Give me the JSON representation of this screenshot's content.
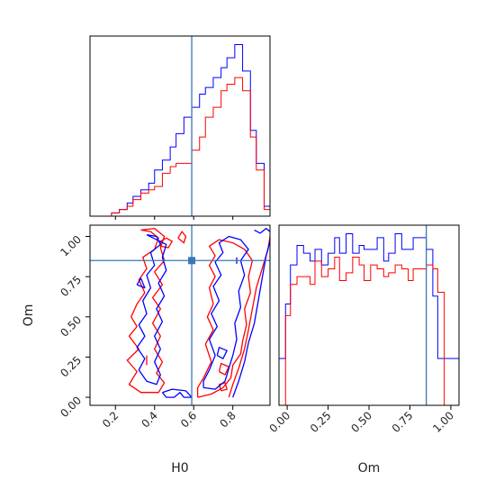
{
  "chart_data": [
    {
      "type": "histogram",
      "parameter": "H0",
      "xlim": [
        0.07,
        0.99
      ],
      "truth": 0.59,
      "bin_edges": [
        0.07,
        0.11,
        0.14,
        0.18,
        0.22,
        0.26,
        0.29,
        0.33,
        0.37,
        0.4,
        0.44,
        0.48,
        0.51,
        0.55,
        0.59,
        0.63,
        0.66,
        0.7,
        0.74,
        0.77,
        0.81,
        0.85,
        0.89,
        0.92,
        0.96,
        0.99
      ],
      "series": [
        {
          "color": "#0000ff",
          "values": [
            0,
            0,
            0,
            1,
            2,
            4,
            6,
            8,
            10,
            14,
            17,
            21,
            25,
            30,
            33,
            37,
            39,
            42,
            45,
            48,
            52,
            44,
            26,
            16,
            3
          ]
        },
        {
          "color": "#ff0000",
          "values": [
            0,
            0,
            0,
            1,
            2,
            3,
            5,
            7,
            8,
            9,
            13,
            15,
            16,
            16,
            20,
            24,
            30,
            33,
            38,
            40,
            42,
            38,
            24,
            14,
            2
          ]
        }
      ]
    },
    {
      "type": "contour",
      "xparam": "H0",
      "yparam": "Om",
      "xlabel": "H0",
      "ylabel": "Om",
      "xlim": [
        0.07,
        0.99
      ],
      "ylim": [
        -0.05,
        1.07
      ],
      "xticks": [
        "0.2",
        "0.4",
        "0.6",
        "0.8"
      ],
      "xtick_values": [
        0.2,
        0.4,
        0.6,
        0.8
      ],
      "yticks": [
        "0.00",
        "0.25",
        "0.50",
        "0.75",
        "1.00"
      ],
      "ytick_values": [
        0.0,
        0.25,
        0.5,
        0.75,
        1.0
      ],
      "truth": {
        "x": 0.59,
        "y": 0.85
      },
      "series": [
        {
          "color": "#ff0000",
          "contours": [
            [
              [
                0.33,
                1.04
              ],
              [
                0.38,
                1.03
              ],
              [
                0.42,
                0.99
              ],
              [
                0.4,
                0.92
              ],
              [
                0.34,
                0.87
              ],
              [
                0.36,
                0.8
              ],
              [
                0.32,
                0.73
              ],
              [
                0.35,
                0.65
              ],
              [
                0.31,
                0.58
              ],
              [
                0.28,
                0.5
              ],
              [
                0.31,
                0.44
              ],
              [
                0.27,
                0.38
              ],
              [
                0.32,
                0.3
              ],
              [
                0.26,
                0.23
              ],
              [
                0.31,
                0.16
              ],
              [
                0.27,
                0.08
              ],
              [
                0.33,
                0.03
              ],
              [
                0.42,
                0.03
              ],
              [
                0.45,
                0.09
              ],
              [
                0.41,
                0.15
              ],
              [
                0.44,
                0.22
              ],
              [
                0.4,
                0.3
              ],
              [
                0.43,
                0.38
              ],
              [
                0.39,
                0.46
              ],
              [
                0.43,
                0.55
              ],
              [
                0.39,
                0.62
              ],
              [
                0.44,
                0.7
              ],
              [
                0.4,
                0.78
              ],
              [
                0.45,
                0.85
              ],
              [
                0.43,
                0.93
              ],
              [
                0.45,
                1.0
              ],
              [
                0.4,
                1.05
              ],
              [
                0.33,
                1.04
              ]
            ],
            [
              [
                0.62,
                0.0
              ],
              [
                0.69,
                0.02
              ],
              [
                0.75,
                0.06
              ],
              [
                0.79,
                0.12
              ],
              [
                0.8,
                0.2
              ],
              [
                0.84,
                0.27
              ],
              [
                0.85,
                0.35
              ],
              [
                0.87,
                0.45
              ],
              [
                0.86,
                0.55
              ],
              [
                0.89,
                0.65
              ],
              [
                0.88,
                0.75
              ],
              [
                0.9,
                0.85
              ],
              [
                0.86,
                0.92
              ],
              [
                0.8,
                0.96
              ],
              [
                0.73,
                0.98
              ],
              [
                0.68,
                0.94
              ],
              [
                0.71,
                0.88
              ],
              [
                0.68,
                0.82
              ],
              [
                0.71,
                0.75
              ],
              [
                0.68,
                0.68
              ],
              [
                0.7,
                0.58
              ],
              [
                0.67,
                0.5
              ],
              [
                0.7,
                0.42
              ],
              [
                0.66,
                0.33
              ],
              [
                0.69,
                0.22
              ],
              [
                0.65,
                0.12
              ],
              [
                0.62,
                0.06
              ],
              [
                0.62,
                0.0
              ]
            ],
            [
              [
                0.78,
                0.0
              ],
              [
                0.8,
                0.08
              ],
              [
                0.83,
                0.18
              ],
              [
                0.86,
                0.3
              ],
              [
                0.88,
                0.42
              ],
              [
                0.9,
                0.55
              ],
              [
                0.92,
                0.68
              ],
              [
                0.95,
                0.8
              ],
              [
                0.98,
                0.92
              ],
              [
                0.99,
                1.0
              ]
            ],
            [
              [
                0.43,
                0.97
              ],
              [
                0.46,
                0.99
              ],
              [
                0.49,
                0.97
              ],
              [
                0.47,
                0.93
              ],
              [
                0.43,
                0.94
              ],
              [
                0.43,
                0.97
              ]
            ],
            [
              [
                0.52,
                0.99
              ],
              [
                0.54,
                1.03
              ],
              [
                0.56,
                1.0
              ],
              [
                0.55,
                0.96
              ],
              [
                0.52,
                0.99
              ]
            ],
            [
              [
                0.74,
                0.04
              ],
              [
                0.77,
                0.05
              ],
              [
                0.76,
                0.09
              ],
              [
                0.73,
                0.08
              ],
              [
                0.74,
                0.04
              ]
            ],
            [
              [
                0.36,
                0.2
              ],
              [
                0.36,
                0.26
              ]
            ],
            [
              [
                0.73,
                0.16
              ],
              [
                0.76,
                0.14
              ],
              [
                0.78,
                0.19
              ],
              [
                0.74,
                0.21
              ],
              [
                0.73,
                0.16
              ]
            ]
          ]
        },
        {
          "color": "#0000ff",
          "contours": [
            [
              [
                0.36,
                1.01
              ],
              [
                0.41,
                1.0
              ],
              [
                0.43,
                0.95
              ],
              [
                0.38,
                0.9
              ],
              [
                0.4,
                0.82
              ],
              [
                0.36,
                0.76
              ],
              [
                0.38,
                0.68
              ],
              [
                0.34,
                0.6
              ],
              [
                0.36,
                0.52
              ],
              [
                0.32,
                0.45
              ],
              [
                0.35,
                0.38
              ],
              [
                0.31,
                0.31
              ],
              [
                0.35,
                0.24
              ],
              [
                0.32,
                0.17
              ],
              [
                0.36,
                0.1
              ],
              [
                0.41,
                0.08
              ],
              [
                0.43,
                0.14
              ],
              [
                0.4,
                0.22
              ],
              [
                0.43,
                0.3
              ],
              [
                0.4,
                0.38
              ],
              [
                0.44,
                0.47
              ],
              [
                0.41,
                0.55
              ],
              [
                0.45,
                0.63
              ],
              [
                0.42,
                0.71
              ],
              [
                0.46,
                0.79
              ],
              [
                0.44,
                0.87
              ],
              [
                0.46,
                0.95
              ],
              [
                0.36,
                1.01
              ]
            ],
            [
              [
                0.65,
                0.06
              ],
              [
                0.71,
                0.05
              ],
              [
                0.76,
                0.1
              ],
              [
                0.78,
                0.18
              ],
              [
                0.8,
                0.26
              ],
              [
                0.82,
                0.36
              ],
              [
                0.81,
                0.46
              ],
              [
                0.84,
                0.56
              ],
              [
                0.83,
                0.66
              ],
              [
                0.86,
                0.76
              ],
              [
                0.84,
                0.85
              ],
              [
                0.88,
                0.92
              ],
              [
                0.84,
                0.98
              ],
              [
                0.78,
                1.0
              ],
              [
                0.73,
                0.96
              ],
              [
                0.75,
                0.9
              ],
              [
                0.71,
                0.84
              ],
              [
                0.74,
                0.76
              ],
              [
                0.7,
                0.69
              ],
              [
                0.73,
                0.6
              ],
              [
                0.69,
                0.52
              ],
              [
                0.72,
                0.44
              ],
              [
                0.68,
                0.36
              ],
              [
                0.71,
                0.26
              ],
              [
                0.68,
                0.17
              ],
              [
                0.65,
                0.1
              ],
              [
                0.65,
                0.06
              ]
            ],
            [
              [
                0.8,
                0.0
              ],
              [
                0.83,
                0.1
              ],
              [
                0.86,
                0.22
              ],
              [
                0.88,
                0.34
              ],
              [
                0.91,
                0.46
              ],
              [
                0.93,
                0.6
              ],
              [
                0.95,
                0.74
              ],
              [
                0.97,
                0.88
              ],
              [
                0.99,
                0.97
              ]
            ],
            [
              [
                0.31,
                0.7
              ],
              [
                0.35,
                0.68
              ],
              [
                0.33,
                0.74
              ],
              [
                0.31,
                0.7
              ]
            ],
            [
              [
                0.44,
                0.03
              ],
              [
                0.46,
                0.0
              ],
              [
                0.5,
                0.0
              ],
              [
                0.53,
                0.03
              ],
              [
                0.55,
                0.0
              ],
              [
                0.59,
                0.0
              ],
              [
                0.56,
                0.04
              ],
              [
                0.49,
                0.05
              ],
              [
                0.44,
                0.03
              ]
            ],
            [
              [
                0.72,
                0.26
              ],
              [
                0.75,
                0.24
              ],
              [
                0.77,
                0.29
              ],
              [
                0.73,
                0.31
              ],
              [
                0.72,
                0.26
              ]
            ],
            [
              [
                0.91,
                1.04
              ],
              [
                0.94,
                1.02
              ],
              [
                0.97,
                1.05
              ],
              [
                0.99,
                1.03
              ]
            ],
            [
              [
                0.82,
                0.83
              ],
              [
                0.82,
                0.87
              ]
            ]
          ]
        }
      ]
    },
    {
      "type": "histogram",
      "parameter": "Om",
      "xlabel": "Om",
      "xlim": [
        -0.05,
        1.05
      ],
      "xticks": [
        "0.00",
        "0.25",
        "0.50",
        "0.75",
        "1.00"
      ],
      "xtick_values": [
        0.0,
        0.25,
        0.5,
        0.75,
        1.0
      ],
      "truth": 0.85,
      "bin_edges": [
        -0.05,
        -0.01,
        0.02,
        0.06,
        0.1,
        0.14,
        0.17,
        0.21,
        0.25,
        0.29,
        0.32,
        0.36,
        0.4,
        0.44,
        0.47,
        0.51,
        0.55,
        0.59,
        0.62,
        0.66,
        0.7,
        0.74,
        0.77,
        0.81,
        0.85,
        0.89,
        0.92,
        0.96,
        1.0,
        1.05
      ],
      "series": [
        {
          "color": "#0000ff",
          "values": [
            12,
            26,
            36,
            41,
            39,
            37,
            40,
            36,
            39,
            43,
            39,
            44,
            39,
            41,
            40,
            40,
            43,
            37,
            39,
            44,
            40,
            40,
            43,
            43,
            40,
            28,
            12,
            12,
            12
          ]
        },
        {
          "color": "#ff0000",
          "values": [
            0,
            23,
            31,
            33,
            33,
            31,
            37,
            33,
            35,
            38,
            32,
            34,
            38,
            36,
            32,
            36,
            35,
            33,
            34,
            36,
            35,
            32,
            35,
            35,
            36,
            35,
            29,
            0,
            0
          ]
        }
      ]
    }
  ]
}
